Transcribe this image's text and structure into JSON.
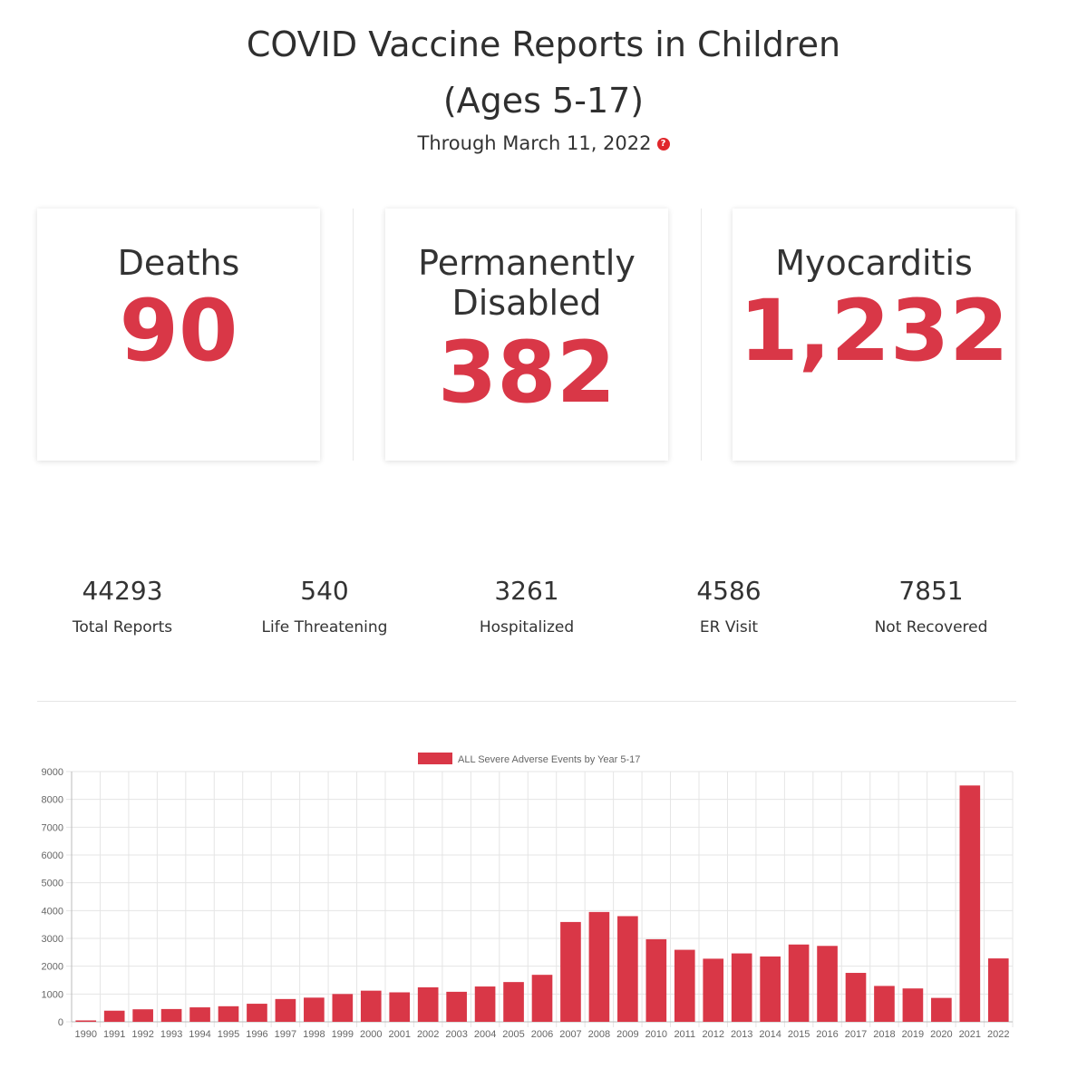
{
  "header": {
    "title_line1": "COVID Vaccine Reports in Children",
    "title_line2": "(Ages 5-17)",
    "subtitle": "Through March 11, 2022",
    "help_glyph": "?"
  },
  "cards": [
    {
      "label_line1": "Deaths",
      "label_line2": "",
      "value": "90"
    },
    {
      "label_line1": "Permanently",
      "label_line2": "Disabled",
      "value": "382"
    },
    {
      "label_line1": "Myocarditis",
      "label_line2": "",
      "value": "1,232"
    }
  ],
  "stats": [
    {
      "value": "44293",
      "label": "Total Reports"
    },
    {
      "value": "540",
      "label": "Life Threatening"
    },
    {
      "value": "3261",
      "label": "Hospitalized"
    },
    {
      "value": "4586",
      "label": "ER Visit"
    },
    {
      "value": "7851",
      "label": "Not Recovered"
    }
  ],
  "colors": {
    "accent": "#d93747",
    "grid": "#e5e5e5"
  },
  "chart_data": {
    "type": "bar",
    "title": "",
    "xlabel": "",
    "ylabel": "",
    "ylim": [
      0,
      9000
    ],
    "yticks": [
      0,
      1000,
      2000,
      3000,
      4000,
      5000,
      6000,
      7000,
      8000,
      9000
    ],
    "grid": true,
    "legend_position": "top",
    "categories": [
      "1990",
      "1991",
      "1992",
      "1993",
      "1994",
      "1995",
      "1996",
      "1997",
      "1998",
      "1999",
      "2000",
      "2001",
      "2002",
      "2003",
      "2004",
      "2005",
      "2006",
      "2007",
      "2008",
      "2009",
      "2010",
      "2011",
      "2012",
      "2013",
      "2014",
      "2015",
      "2016",
      "2017",
      "2018",
      "2019",
      "2020",
      "2021",
      "2022"
    ],
    "series": [
      {
        "name": "ALL Severe Adverse Events by Year 5-17",
        "color": "#d93747",
        "values": [
          50,
          400,
          450,
          460,
          520,
          560,
          650,
          820,
          870,
          1000,
          1120,
          1060,
          1240,
          1080,
          1270,
          1430,
          1690,
          3590,
          3950,
          3800,
          2970,
          2590,
          2270,
          2460,
          2350,
          2780,
          2730,
          1760,
          1290,
          1200,
          860,
          8500,
          2280
        ]
      }
    ]
  }
}
